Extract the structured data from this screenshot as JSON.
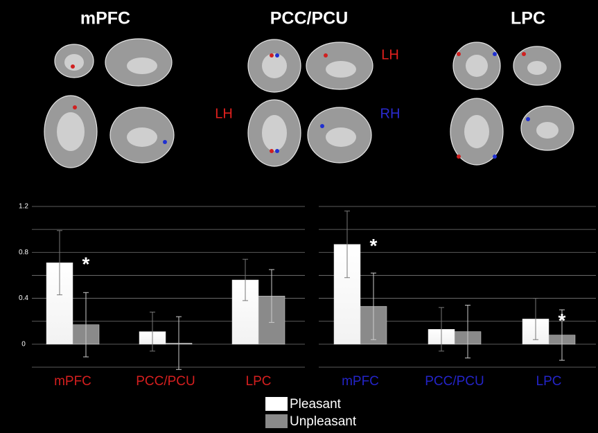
{
  "panel_titles": [
    "mPFC",
    "PCC/PCU",
    "LPC"
  ],
  "hemisphere_labels": [
    {
      "text": "LH",
      "color": "#e0201e"
    },
    {
      "text": "LH",
      "color": "#e0201e"
    },
    {
      "text": "RH",
      "color": "#2a2ad0"
    }
  ],
  "chart_data": [
    {
      "type": "bar",
      "categories": [
        "mPFC",
        "PCC/PCU",
        "LPC"
      ],
      "category_color": "#d61f1f",
      "series": [
        {
          "name": "Pleasant",
          "color": "#ffffff",
          "values": [
            0.71,
            0.11,
            0.56
          ],
          "errors": [
            0.28,
            0.17,
            0.18
          ]
        },
        {
          "name": "Unpleasant",
          "color": "#8a8a8a",
          "values": [
            0.17,
            0.01,
            0.42
          ],
          "errors": [
            0.28,
            0.23,
            0.23
          ]
        }
      ],
      "ylim": [
        -0.2,
        1.2
      ],
      "yticks": [
        0,
        0.4,
        0.8,
        1.2
      ],
      "grid_lines": [
        -0.2,
        0,
        0.2,
        0.4,
        0.6,
        0.8,
        1.0,
        1.2
      ],
      "annotations": [
        {
          "text": "*",
          "category": 0
        }
      ]
    },
    {
      "type": "bar",
      "categories": [
        "mPFC",
        "PCC/PCU",
        "LPC"
      ],
      "category_color": "#2424c8",
      "series": [
        {
          "color": "#ffffff",
          "values": [
            0.87,
            0.13,
            0.22
          ],
          "errors": [
            0.29,
            0.19,
            0.18
          ]
        },
        {
          "color": "#8a8a8a",
          "values": [
            0.33,
            0.11,
            0.08
          ],
          "errors": [
            0.29,
            0.23,
            0.22
          ]
        }
      ],
      "ylim": [
        -0.2,
        1.2
      ],
      "grid_lines": [
        -0.2,
        0,
        0.2,
        0.4,
        0.6,
        0.8,
        1.0,
        1.2
      ],
      "annotations": [
        {
          "text": "*",
          "category": 0
        },
        {
          "text": "*",
          "category": 2
        }
      ]
    }
  ]
}
